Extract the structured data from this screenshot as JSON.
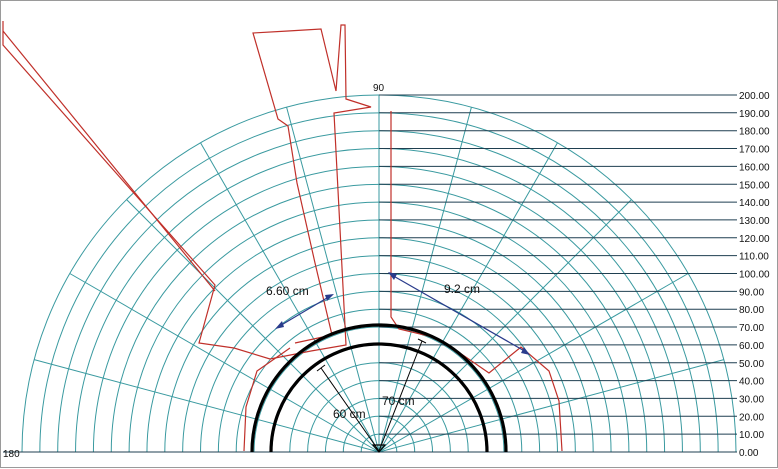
{
  "angle_labels": {
    "top": "90",
    "left": "180"
  },
  "level_labels": [
    "0.00",
    "10.00",
    "20.00",
    "30.00",
    "40.00",
    "50.00",
    "60.00",
    "70.00",
    "80.00",
    "90.00",
    "100.00",
    "110.00",
    "120.00",
    "130.00",
    "140.00",
    "150.00",
    "160.00",
    "170.00",
    "180.00",
    "190.00",
    "200.00"
  ],
  "measurements": {
    "left_gap": "6.60 cm",
    "right_gap": "9.2 cm",
    "inner_diameter": "60 cm",
    "outer_diameter": "70 cm"
  },
  "colors": {
    "grid": "#3a9aa0",
    "outline": "#c0302a",
    "rings": "#000000",
    "arrows": "#2a3c8c"
  }
}
